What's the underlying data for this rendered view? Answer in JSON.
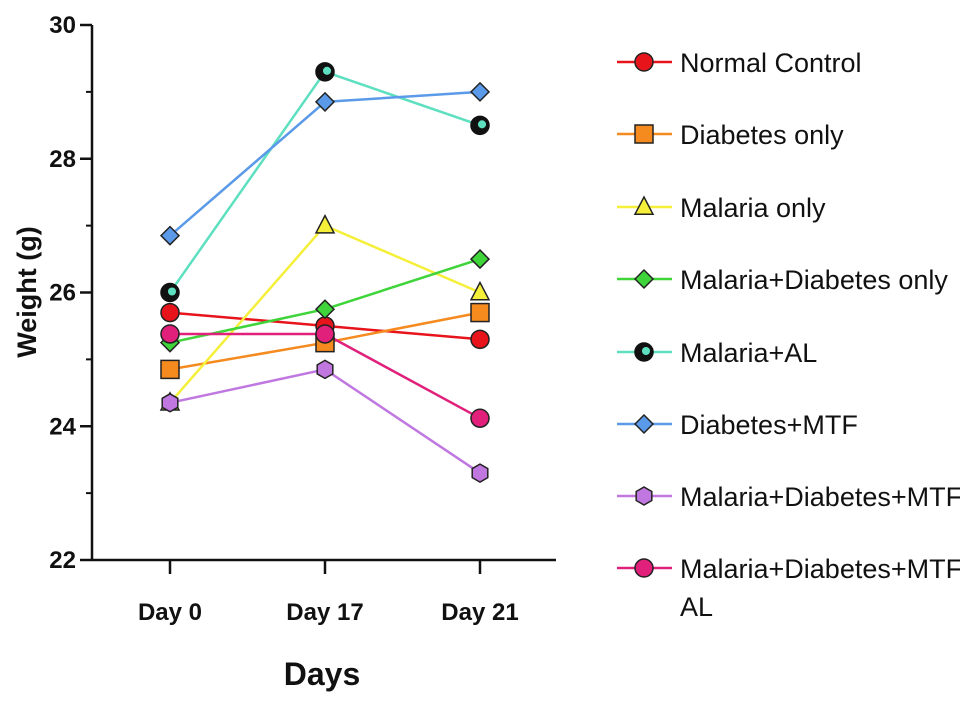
{
  "chart_data": {
    "type": "line",
    "categories": [
      "Day 0",
      "Day 17",
      "Day 21"
    ],
    "xlabel": "Days",
    "ylabel": "Weight (g)",
    "ylim": [
      22,
      30
    ],
    "yticks": [
      "22",
      "24",
      "26",
      "28",
      "30"
    ],
    "grid": false,
    "legend_position": "right",
    "series": [
      {
        "name": "Normal Control",
        "color": "#e8141c",
        "marker": "circle",
        "values": [
          25.7,
          25.5,
          25.3
        ]
      },
      {
        "name": "Diabetes only",
        "color": "#f58a1f",
        "marker": "square",
        "values": [
          24.85,
          25.25,
          25.7
        ]
      },
      {
        "name": "Malaria only",
        "color": "#f5ef3a",
        "marker": "triangle",
        "values": [
          24.35,
          27.0,
          26.0
        ]
      },
      {
        "name": "Malaria+Diabetes only",
        "color": "#3ed43a",
        "marker": "diamond",
        "values": [
          25.25,
          25.75,
          26.5
        ]
      },
      {
        "name": "Malaria+AL",
        "color": "#5ee0c0",
        "marker": "circle-dark",
        "values": [
          26.0,
          29.3,
          28.5
        ]
      },
      {
        "name": "Diabetes+MTF",
        "color": "#5b9ae8",
        "marker": "diamond",
        "values": [
          26.85,
          28.85,
          29.0
        ]
      },
      {
        "name": "Malaria+Diabetes+MTF",
        "color": "#c078e0",
        "marker": "hexagon",
        "values": [
          24.35,
          24.85,
          23.3
        ]
      },
      {
        "name": "Malaria+Diabetes+MTF+\nAL",
        "color": "#e0207a",
        "marker": "circle",
        "values": [
          25.38,
          25.38,
          24.12
        ]
      }
    ]
  }
}
